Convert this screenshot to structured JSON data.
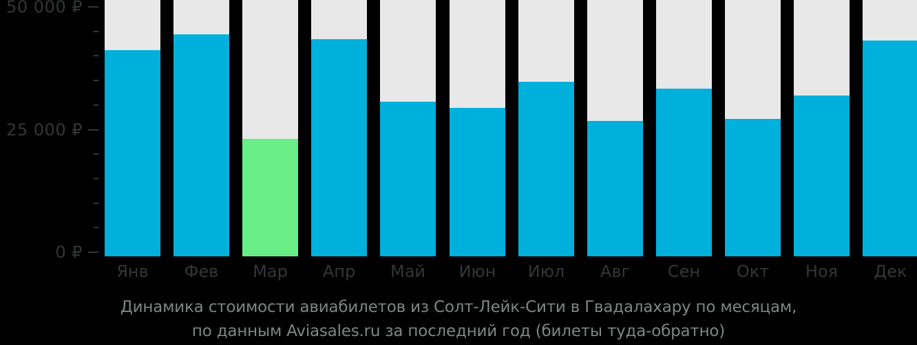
{
  "chart_data": {
    "type": "bar",
    "title": "Динамика стоимости авиабилетов из Солт-Лейк-Сити в Гвадалахару по месяцам, по данным Aviasales.ru за последний год (билеты туда-обратно)",
    "title_line1": "Динамика стоимости авиабилетов из Солт-Лейк-Сити в Гвадалахару по месяцам,",
    "title_line2": "по данным Aviasales.ru за последний год (билеты туда-обратно)",
    "categories": [
      "Янв",
      "Фев",
      "Мар",
      "Апр",
      "Май",
      "Июн",
      "Июл",
      "Авг",
      "Сен",
      "Окт",
      "Ноя",
      "Дек"
    ],
    "values": [
      42000,
      45200,
      24000,
      44300,
      31500,
      30300,
      35600,
      27600,
      34200,
      28000,
      32800,
      44000
    ],
    "currency": "₽",
    "highlight_index": 2,
    "ylim": [
      0,
      50000
    ],
    "ytick_step": 5000,
    "ymajor_ticks": [
      {
        "value": 50000,
        "label": "50 000 ₽"
      },
      {
        "value": 25000,
        "label": "25 000 ₽"
      },
      {
        "value": 0,
        "label": "0 ₽"
      }
    ],
    "xlabel": "",
    "ylabel": "",
    "grid": false,
    "legend": "none",
    "colors": {
      "bar": "#00b0dc",
      "highlight_bar": "#69ee87",
      "column_background": "#e8e8e8",
      "page_background": "#000000",
      "axis_text": "#333637",
      "title_text": "#7d8786"
    }
  }
}
